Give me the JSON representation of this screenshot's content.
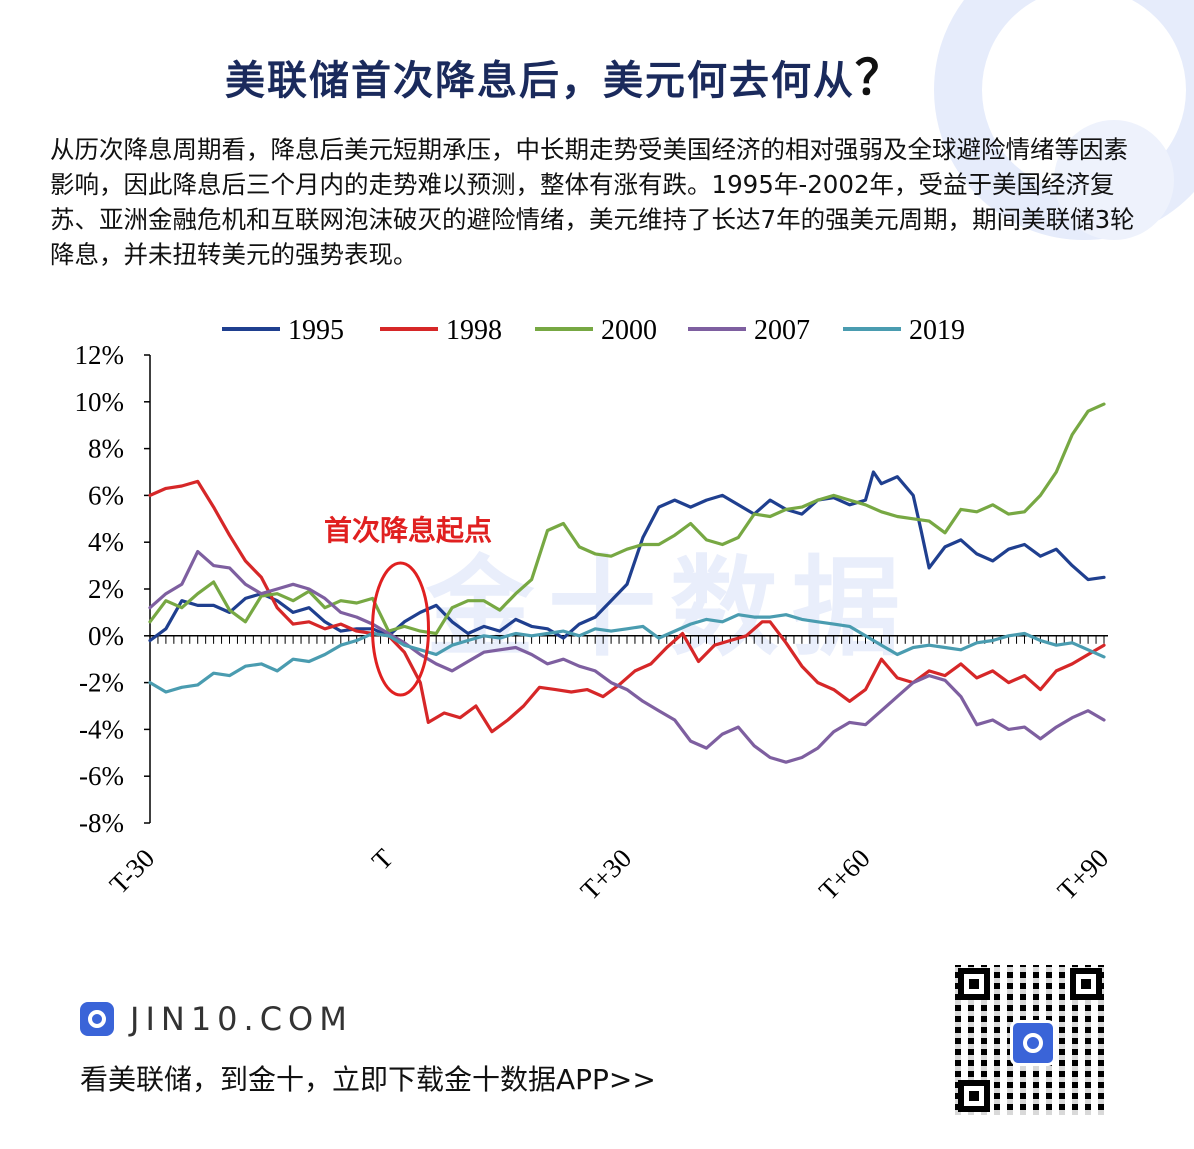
{
  "header": {
    "title": "美联储首次降息后，美元何去何从",
    "title_mark": "？"
  },
  "description": "从历次降息周期看，降息后美元短期承压，中长期走势受美国经济的相对强弱及全球避险情绪等因素影响，因此降息后三个月内的走势难以预测，整体有涨有跌。1995年-2002年，受益于美国经济复苏、亚洲金融危机和互联网泡沫破灭的避险情绪，美元维持了长达7年的强美元周期，期间美联储3轮降息，并未扭转美元的强势表现。",
  "chart_data": {
    "type": "line",
    "title": "",
    "xlabel": "",
    "ylabel": "",
    "x_range": [
      -30,
      90
    ],
    "xticks": [
      -30,
      0,
      30,
      60,
      90
    ],
    "xtick_labels": [
      "T-30",
      "T",
      "T+30",
      "T+60",
      "T+90"
    ],
    "ylim": [
      -8,
      12
    ],
    "yticks": [
      -8,
      -6,
      -4,
      -2,
      0,
      2,
      4,
      6,
      8,
      10,
      12
    ],
    "ytick_labels": [
      "-8%",
      "-6%",
      "-4%",
      "-2%",
      "0%",
      "2%",
      "4%",
      "6%",
      "8%",
      "10%",
      "12%"
    ],
    "grid": false,
    "legend_position": "top",
    "annotation": {
      "text": "首次降息起点",
      "color": "#e02020",
      "x": 0
    },
    "watermark": "金十数据",
    "series": [
      {
        "name": "1995",
        "color": "#1f3f8f",
        "points": [
          [
            -30,
            -0.2
          ],
          [
            -28,
            0.3
          ],
          [
            -26,
            1.5
          ],
          [
            -24,
            1.3
          ],
          [
            -22,
            1.3
          ],
          [
            -20,
            1.0
          ],
          [
            -18,
            1.6
          ],
          [
            -16,
            1.8
          ],
          [
            -14,
            1.5
          ],
          [
            -12,
            1.0
          ],
          [
            -10,
            1.2
          ],
          [
            -8,
            0.6
          ],
          [
            -6,
            0.2
          ],
          [
            -4,
            0.3
          ],
          [
            -2,
            0.3
          ],
          [
            0,
            0.0
          ],
          [
            2,
            0.6
          ],
          [
            4,
            1.0
          ],
          [
            6,
            1.3
          ],
          [
            8,
            0.6
          ],
          [
            10,
            0.1
          ],
          [
            12,
            0.4
          ],
          [
            14,
            0.2
          ],
          [
            16,
            0.7
          ],
          [
            18,
            0.4
          ],
          [
            20,
            0.3
          ],
          [
            22,
            -0.1
          ],
          [
            24,
            0.5
          ],
          [
            26,
            0.8
          ],
          [
            28,
            1.5
          ],
          [
            30,
            2.2
          ],
          [
            32,
            4.2
          ],
          [
            34,
            5.5
          ],
          [
            36,
            5.8
          ],
          [
            38,
            5.5
          ],
          [
            40,
            5.8
          ],
          [
            42,
            6.0
          ],
          [
            44,
            5.6
          ],
          [
            46,
            5.2
          ],
          [
            48,
            5.8
          ],
          [
            50,
            5.4
          ],
          [
            52,
            5.2
          ],
          [
            54,
            5.8
          ],
          [
            56,
            5.9
          ],
          [
            58,
            5.6
          ],
          [
            60,
            5.8
          ],
          [
            61,
            7.0
          ],
          [
            62,
            6.5
          ],
          [
            64,
            6.8
          ],
          [
            66,
            6.0
          ],
          [
            67,
            4.5
          ],
          [
            68,
            2.9
          ],
          [
            70,
            3.8
          ],
          [
            72,
            4.1
          ],
          [
            74,
            3.5
          ],
          [
            76,
            3.2
          ],
          [
            78,
            3.7
          ],
          [
            80,
            3.9
          ],
          [
            82,
            3.4
          ],
          [
            84,
            3.7
          ],
          [
            86,
            3.0
          ],
          [
            88,
            2.4
          ],
          [
            90,
            2.5
          ]
        ]
      },
      {
        "name": "1998",
        "color": "#d62728",
        "points": [
          [
            -30,
            6.0
          ],
          [
            -28,
            6.3
          ],
          [
            -26,
            6.4
          ],
          [
            -24,
            6.6
          ],
          [
            -22,
            5.5
          ],
          [
            -20,
            4.3
          ],
          [
            -18,
            3.2
          ],
          [
            -16,
            2.5
          ],
          [
            -14,
            1.2
          ],
          [
            -12,
            0.5
          ],
          [
            -10,
            0.6
          ],
          [
            -8,
            0.3
          ],
          [
            -6,
            0.5
          ],
          [
            -4,
            0.2
          ],
          [
            -2,
            0.1
          ],
          [
            0,
            0.0
          ],
          [
            2,
            -0.7
          ],
          [
            4,
            -2.0
          ],
          [
            5,
            -3.7
          ],
          [
            7,
            -3.3
          ],
          [
            9,
            -3.5
          ],
          [
            11,
            -3.0
          ],
          [
            13,
            -4.1
          ],
          [
            15,
            -3.6
          ],
          [
            17,
            -3.0
          ],
          [
            19,
            -2.2
          ],
          [
            21,
            -2.3
          ],
          [
            23,
            -2.4
          ],
          [
            25,
            -2.3
          ],
          [
            27,
            -2.6
          ],
          [
            29,
            -2.1
          ],
          [
            31,
            -1.5
          ],
          [
            33,
            -1.2
          ],
          [
            35,
            -0.5
          ],
          [
            37,
            0.1
          ],
          [
            39,
            -1.1
          ],
          [
            41,
            -0.4
          ],
          [
            43,
            -0.2
          ],
          [
            45,
            0.0
          ],
          [
            47,
            0.6
          ],
          [
            48,
            0.6
          ],
          [
            50,
            -0.3
          ],
          [
            52,
            -1.3
          ],
          [
            54,
            -2.0
          ],
          [
            56,
            -2.3
          ],
          [
            58,
            -2.8
          ],
          [
            60,
            -2.3
          ],
          [
            62,
            -1.0
          ],
          [
            64,
            -1.8
          ],
          [
            66,
            -2.0
          ],
          [
            68,
            -1.5
          ],
          [
            70,
            -1.7
          ],
          [
            72,
            -1.2
          ],
          [
            74,
            -1.8
          ],
          [
            76,
            -1.5
          ],
          [
            78,
            -2.0
          ],
          [
            80,
            -1.7
          ],
          [
            82,
            -2.3
          ],
          [
            84,
            -1.5
          ],
          [
            86,
            -1.2
          ],
          [
            88,
            -0.8
          ],
          [
            90,
            -0.4
          ]
        ]
      },
      {
        "name": "2000",
        "color": "#77a843",
        "points": [
          [
            -30,
            0.6
          ],
          [
            -28,
            1.5
          ],
          [
            -26,
            1.2
          ],
          [
            -24,
            1.8
          ],
          [
            -22,
            2.3
          ],
          [
            -20,
            1.1
          ],
          [
            -18,
            0.6
          ],
          [
            -16,
            1.7
          ],
          [
            -14,
            1.8
          ],
          [
            -12,
            1.5
          ],
          [
            -10,
            1.9
          ],
          [
            -8,
            1.2
          ],
          [
            -6,
            1.5
          ],
          [
            -4,
            1.4
          ],
          [
            -2,
            1.6
          ],
          [
            0,
            0.2
          ],
          [
            2,
            0.4
          ],
          [
            4,
            0.2
          ],
          [
            6,
            0.1
          ],
          [
            8,
            1.2
          ],
          [
            10,
            1.5
          ],
          [
            12,
            1.5
          ],
          [
            14,
            1.1
          ],
          [
            16,
            1.8
          ],
          [
            18,
            2.4
          ],
          [
            20,
            4.5
          ],
          [
            22,
            4.8
          ],
          [
            24,
            3.8
          ],
          [
            26,
            3.5
          ],
          [
            28,
            3.4
          ],
          [
            30,
            3.7
          ],
          [
            32,
            3.9
          ],
          [
            34,
            3.9
          ],
          [
            36,
            4.3
          ],
          [
            38,
            4.8
          ],
          [
            40,
            4.1
          ],
          [
            42,
            3.9
          ],
          [
            44,
            4.2
          ],
          [
            46,
            5.2
          ],
          [
            48,
            5.1
          ],
          [
            50,
            5.4
          ],
          [
            52,
            5.5
          ],
          [
            54,
            5.8
          ],
          [
            56,
            6.0
          ],
          [
            58,
            5.8
          ],
          [
            60,
            5.6
          ],
          [
            62,
            5.3
          ],
          [
            64,
            5.1
          ],
          [
            66,
            5.0
          ],
          [
            68,
            4.9
          ],
          [
            70,
            4.4
          ],
          [
            72,
            5.4
          ],
          [
            74,
            5.3
          ],
          [
            76,
            5.6
          ],
          [
            78,
            5.2
          ],
          [
            80,
            5.3
          ],
          [
            82,
            6.0
          ],
          [
            84,
            7.0
          ],
          [
            86,
            8.6
          ],
          [
            88,
            9.6
          ],
          [
            90,
            9.9
          ]
        ]
      },
      {
        "name": "2007",
        "color": "#7e5fa0",
        "points": [
          [
            -30,
            1.2
          ],
          [
            -28,
            1.8
          ],
          [
            -26,
            2.2
          ],
          [
            -24,
            3.6
          ],
          [
            -22,
            3.0
          ],
          [
            -20,
            2.9
          ],
          [
            -18,
            2.2
          ],
          [
            -16,
            1.8
          ],
          [
            -14,
            2.0
          ],
          [
            -12,
            2.2
          ],
          [
            -10,
            2.0
          ],
          [
            -8,
            1.6
          ],
          [
            -6,
            1.0
          ],
          [
            -4,
            0.8
          ],
          [
            -2,
            0.5
          ],
          [
            0,
            0.1
          ],
          [
            2,
            -0.3
          ],
          [
            4,
            -0.8
          ],
          [
            6,
            -1.2
          ],
          [
            8,
            -1.5
          ],
          [
            10,
            -1.1
          ],
          [
            12,
            -0.7
          ],
          [
            14,
            -0.6
          ],
          [
            16,
            -0.5
          ],
          [
            18,
            -0.8
          ],
          [
            20,
            -1.2
          ],
          [
            22,
            -1.0
          ],
          [
            24,
            -1.3
          ],
          [
            26,
            -1.5
          ],
          [
            28,
            -2.0
          ],
          [
            30,
            -2.3
          ],
          [
            32,
            -2.8
          ],
          [
            34,
            -3.2
          ],
          [
            36,
            -3.6
          ],
          [
            38,
            -4.5
          ],
          [
            40,
            -4.8
          ],
          [
            42,
            -4.2
          ],
          [
            44,
            -3.9
          ],
          [
            46,
            -4.7
          ],
          [
            48,
            -5.2
          ],
          [
            50,
            -5.4
          ],
          [
            52,
            -5.2
          ],
          [
            54,
            -4.8
          ],
          [
            56,
            -4.1
          ],
          [
            58,
            -3.7
          ],
          [
            60,
            -3.8
          ],
          [
            62,
            -3.2
          ],
          [
            64,
            -2.6
          ],
          [
            66,
            -2.0
          ],
          [
            68,
            -1.7
          ],
          [
            70,
            -1.9
          ],
          [
            72,
            -2.6
          ],
          [
            74,
            -3.8
          ],
          [
            76,
            -3.6
          ],
          [
            78,
            -4.0
          ],
          [
            80,
            -3.9
          ],
          [
            82,
            -4.4
          ],
          [
            84,
            -3.9
          ],
          [
            86,
            -3.5
          ],
          [
            88,
            -3.2
          ],
          [
            90,
            -3.6
          ]
        ]
      },
      {
        "name": "2019",
        "color": "#4a9cb0",
        "points": [
          [
            -30,
            -2.0
          ],
          [
            -28,
            -2.4
          ],
          [
            -26,
            -2.2
          ],
          [
            -24,
            -2.1
          ],
          [
            -22,
            -1.6
          ],
          [
            -20,
            -1.7
          ],
          [
            -18,
            -1.3
          ],
          [
            -16,
            -1.2
          ],
          [
            -14,
            -1.5
          ],
          [
            -12,
            -1.0
          ],
          [
            -10,
            -1.1
          ],
          [
            -8,
            -0.8
          ],
          [
            -6,
            -0.4
          ],
          [
            -4,
            -0.2
          ],
          [
            -2,
            0.1
          ],
          [
            0,
            0.0
          ],
          [
            2,
            -0.4
          ],
          [
            4,
            -0.6
          ],
          [
            6,
            -0.8
          ],
          [
            8,
            -0.4
          ],
          [
            10,
            -0.2
          ],
          [
            12,
            0.0
          ],
          [
            14,
            -0.1
          ],
          [
            16,
            0.1
          ],
          [
            18,
            0.0
          ],
          [
            20,
            0.1
          ],
          [
            22,
            0.2
          ],
          [
            24,
            0.0
          ],
          [
            26,
            0.3
          ],
          [
            28,
            0.2
          ],
          [
            30,
            0.3
          ],
          [
            32,
            0.4
          ],
          [
            34,
            -0.1
          ],
          [
            36,
            0.2
          ],
          [
            38,
            0.5
          ],
          [
            40,
            0.7
          ],
          [
            42,
            0.6
          ],
          [
            44,
            0.9
          ],
          [
            46,
            0.8
          ],
          [
            48,
            0.8
          ],
          [
            50,
            0.9
          ],
          [
            52,
            0.7
          ],
          [
            54,
            0.6
          ],
          [
            56,
            0.5
          ],
          [
            58,
            0.4
          ],
          [
            60,
            0.0
          ],
          [
            62,
            -0.4
          ],
          [
            64,
            -0.8
          ],
          [
            66,
            -0.5
          ],
          [
            68,
            -0.4
          ],
          [
            70,
            -0.5
          ],
          [
            72,
            -0.6
          ],
          [
            74,
            -0.3
          ],
          [
            76,
            -0.2
          ],
          [
            78,
            0.0
          ],
          [
            80,
            0.1
          ],
          [
            82,
            -0.2
          ],
          [
            84,
            -0.4
          ],
          [
            86,
            -0.3
          ],
          [
            88,
            -0.6
          ],
          [
            90,
            -0.9
          ]
        ]
      }
    ]
  },
  "footer": {
    "site": "JIN10.COM",
    "slogan": "看美联储，到金十，立即下载金十数据APP>>"
  }
}
